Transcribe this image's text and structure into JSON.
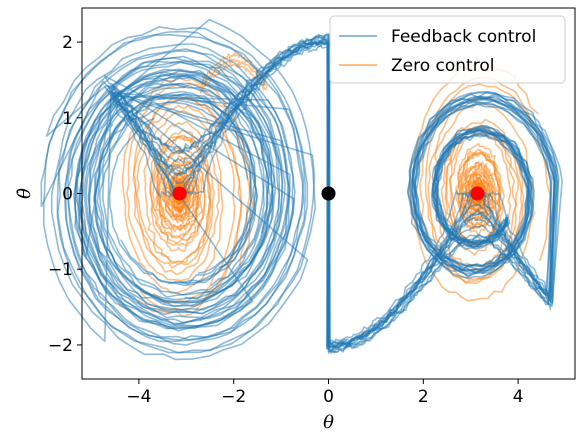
{
  "chart_data": {
    "type": "line",
    "title": "",
    "xlabel": "θ",
    "ylabel": "θ̇",
    "xlim": [
      -5.2,
      5.2
    ],
    "ylim": [
      -2.45,
      2.45
    ],
    "xticks": [
      -4,
      -2,
      0,
      2,
      4
    ],
    "yticks": [
      -2,
      -1,
      0,
      1,
      2
    ],
    "xtick_labels": [
      "−4",
      "−2",
      "0",
      "2",
      "4"
    ],
    "ytick_labels": [
      "−2",
      "−1",
      "0",
      "1",
      "2"
    ],
    "grid": false,
    "legend_position": "top-right",
    "series": [
      {
        "name": "Feedback control",
        "color": "#1f77b4",
        "alpha": 0.5,
        "description_points": [
          [
            0,
            0
          ],
          [
            -0.9,
            0.9
          ],
          [
            -2.0,
            1.8
          ],
          [
            -3.0,
            2.15
          ],
          [
            -4.0,
            1.4
          ],
          [
            -4.6,
            0
          ],
          [
            -4.2,
            -1.2
          ],
          [
            -3.6,
            -1.35
          ],
          [
            -3.14,
            0
          ],
          [
            -2.6,
            -0.9
          ],
          [
            -3.14,
            0
          ],
          [
            0,
            0
          ],
          [
            0.9,
            -0.9
          ],
          [
            2.0,
            -1.8
          ],
          [
            3.0,
            -2.15
          ],
          [
            4.0,
            -1.4
          ],
          [
            4.6,
            0
          ],
          [
            4.2,
            1.2
          ],
          [
            3.6,
            1.35
          ],
          [
            3.14,
            0
          ]
        ]
      },
      {
        "name": "Zero control",
        "color": "#ff7f0e",
        "alpha": 0.5,
        "description_points": [
          [
            -3.14,
            0
          ],
          [
            -2.4,
            0.6
          ],
          [
            -2.1,
            1.5
          ],
          [
            -1.5,
            1.75
          ],
          [
            -3.5,
            1.35
          ],
          [
            -3.9,
            0
          ],
          [
            -3.14,
            -1.2
          ],
          [
            -2.4,
            -0.6
          ],
          [
            3.14,
            0
          ],
          [
            3.9,
            0.5
          ],
          [
            3.5,
            1.3
          ],
          [
            2.5,
            1.0
          ],
          [
            2.4,
            -0.5
          ],
          [
            3.14,
            -1.2
          ]
        ]
      }
    ],
    "markers": [
      {
        "x": -3.14159,
        "y": 0,
        "color": "#ff0000"
      },
      {
        "x": 0,
        "y": 0,
        "color": "#000000"
      },
      {
        "x": 3.14159,
        "y": 0,
        "color": "#ff0000"
      }
    ]
  }
}
